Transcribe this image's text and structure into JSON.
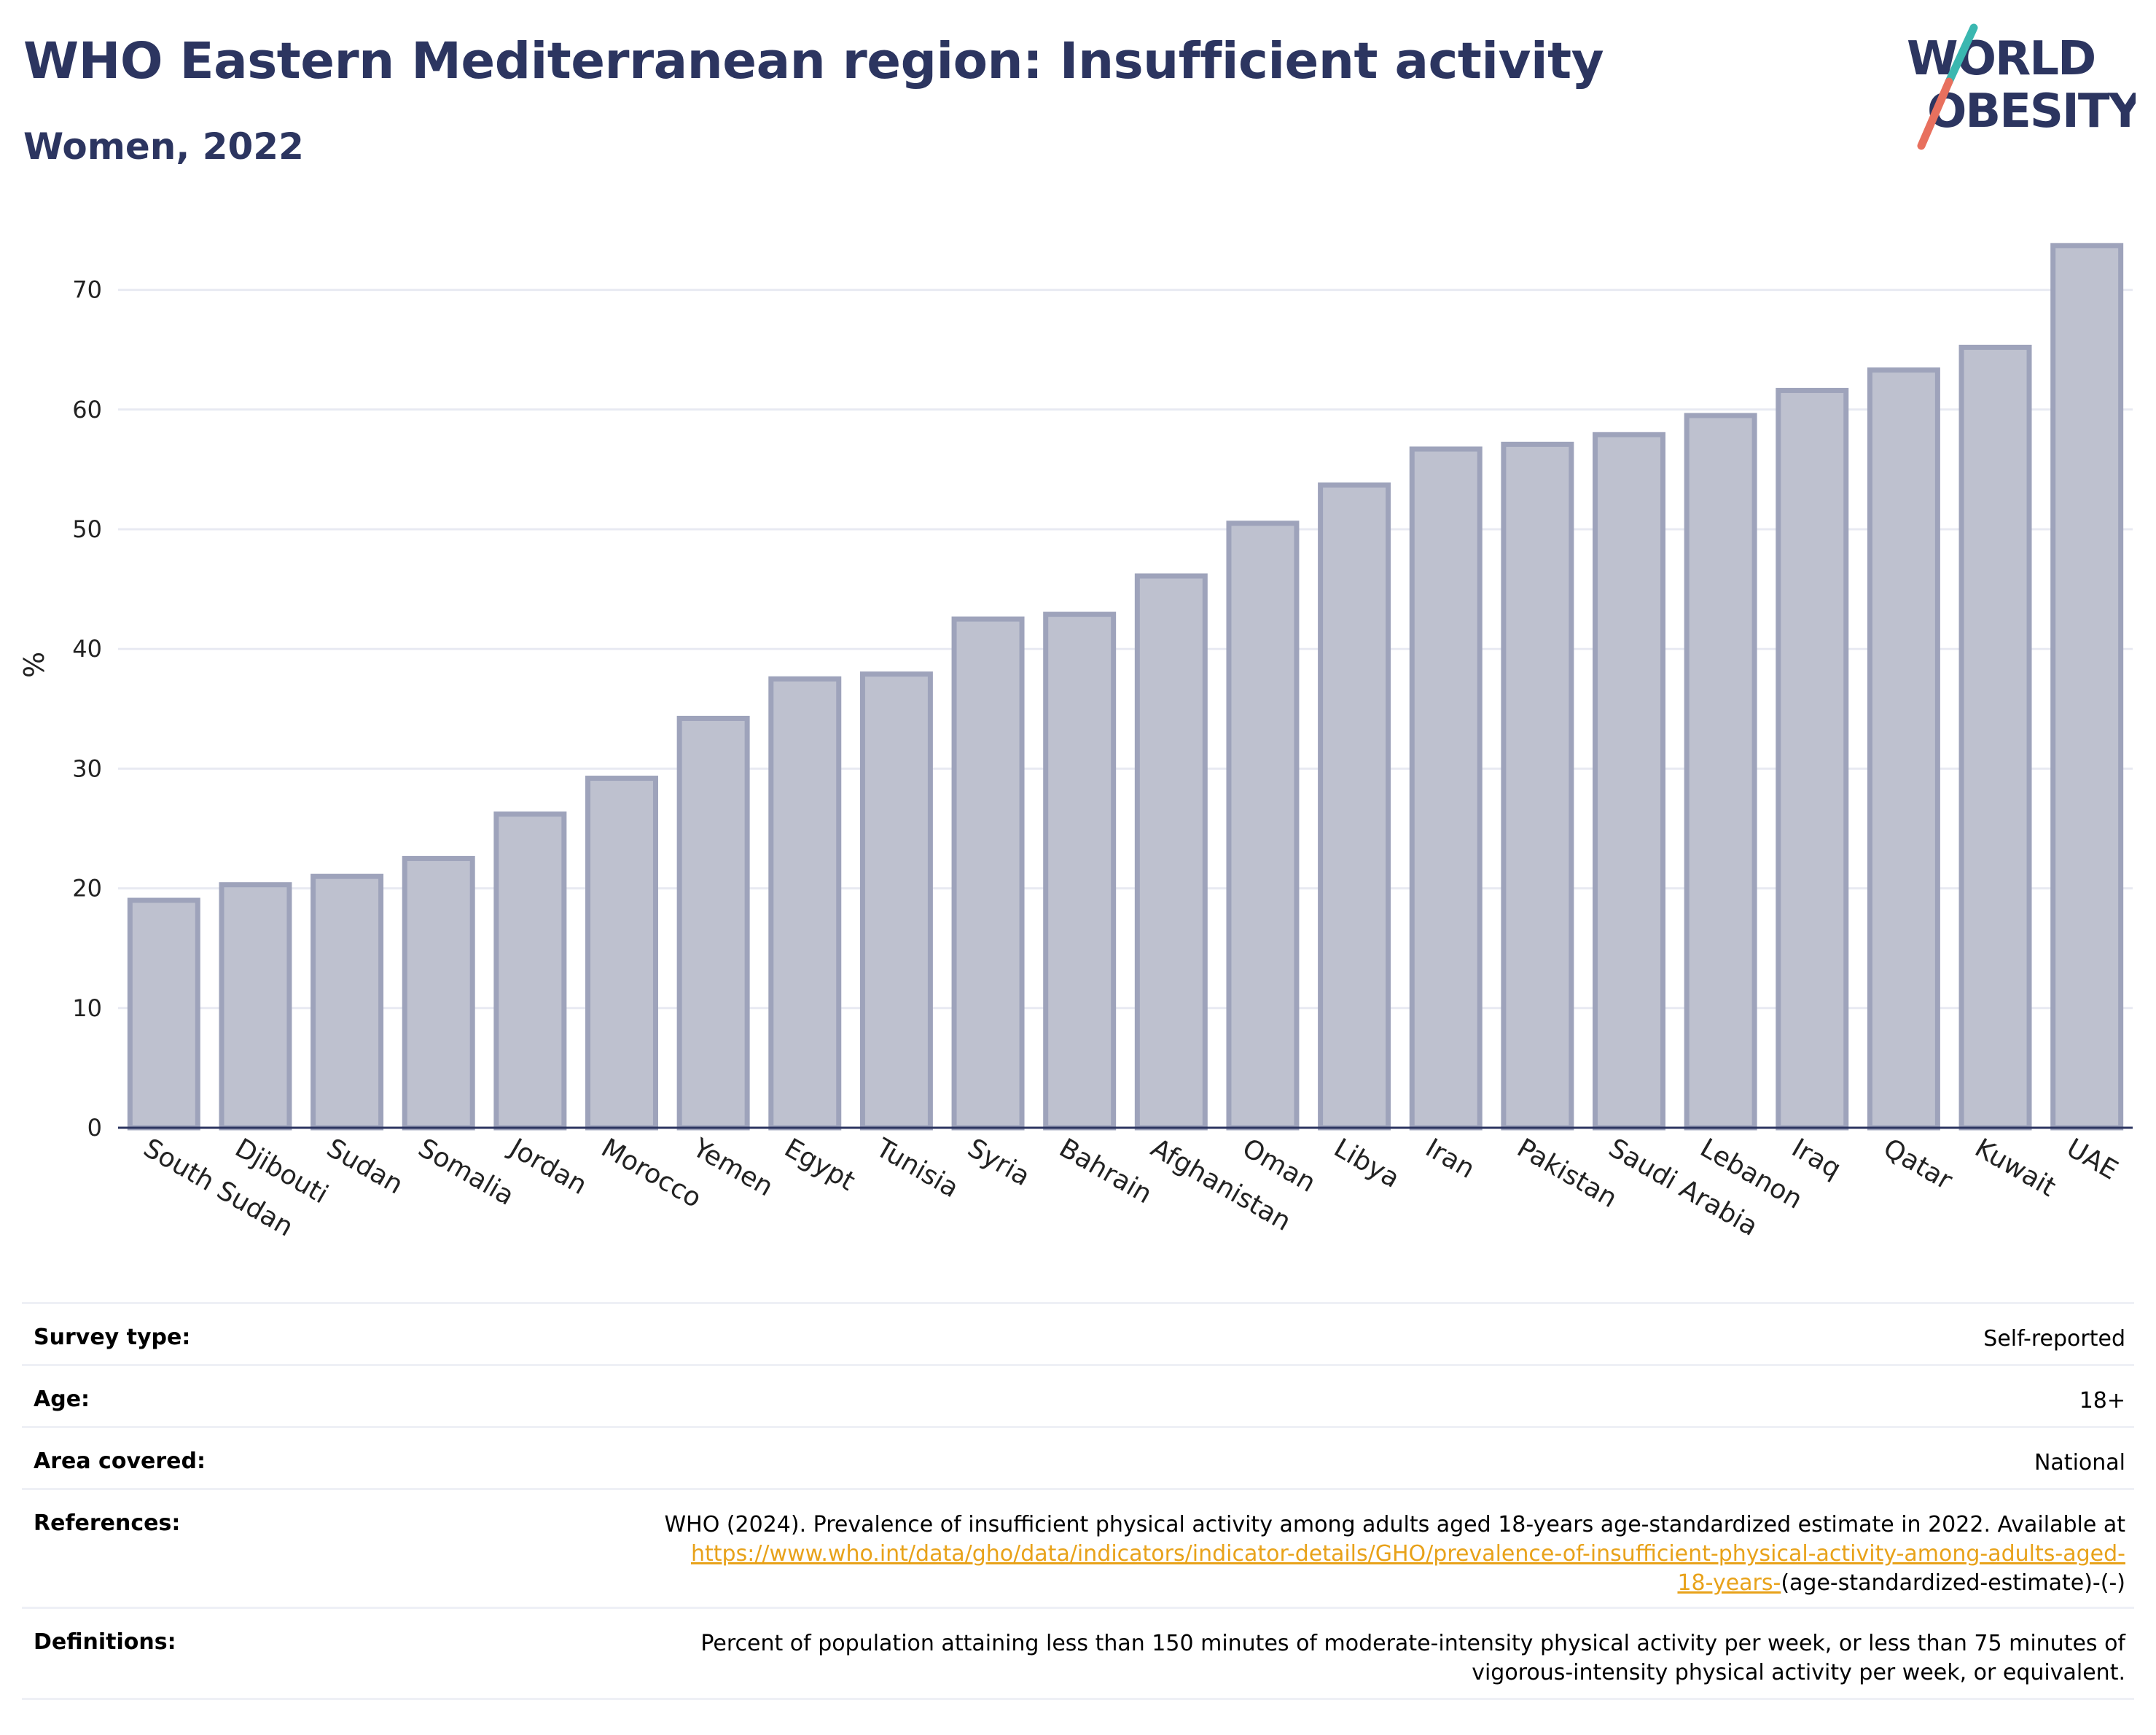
{
  "header": {
    "title": "WHO Eastern Mediterranean region: Insufficient activity",
    "subtitle": "Women, 2022"
  },
  "logo": {
    "line1": "WORLD",
    "line2": "OBESITY",
    "colors": {
      "text": "#2c3560",
      "slash_teal": "#3ab7b0",
      "slash_coral": "#e8705e"
    }
  },
  "chart_data": {
    "type": "bar",
    "title": "WHO Eastern Mediterranean region: Insufficient activity",
    "subtitle": "Women, 2022",
    "xlabel": "",
    "ylabel": "%",
    "ylim": [
      0,
      75
    ],
    "yticks": [
      0,
      10,
      20,
      30,
      40,
      50,
      60,
      70
    ],
    "grid": true,
    "categories": [
      "South Sudan",
      "Djibouti",
      "Sudan",
      "Somalia",
      "Jordan",
      "Morocco",
      "Yemen",
      "Egypt",
      "Tunisia",
      "Syria",
      "Bahrain",
      "Afghanistan",
      "Oman",
      "Libya",
      "Iran",
      "Pakistan",
      "Saudi Arabia",
      "Lebanon",
      "Iraq",
      "Qatar",
      "Kuwait",
      "UAE"
    ],
    "values": [
      19.0,
      20.3,
      21.0,
      22.5,
      26.2,
      29.2,
      34.2,
      37.5,
      37.9,
      42.5,
      42.9,
      46.1,
      50.5,
      53.7,
      56.7,
      57.1,
      57.9,
      59.5,
      61.6,
      63.3,
      65.2,
      73.7
    ],
    "colors": {
      "bar_fill": "#bec1cf",
      "bar_stroke": "#9ea3bb",
      "gridline": "#e8eaf2",
      "axis": "#2c3560"
    }
  },
  "meta": {
    "survey_type_label": "Survey type:",
    "survey_type_value": "Self-reported",
    "age_label": "Age:",
    "age_value": "18+",
    "area_label": "Area covered:",
    "area_value": "National",
    "references_label": "References:",
    "references_text": "WHO (2024). Prevalence of insufficient physical activity among adults aged 18-years age-standardized estimate in 2022. Available at",
    "references_link_line1": "https://www.who.int/data/gho/data/indicators/indicator-details/GHO/prevalence-of-insufficient-physical-activity-among-adults-aged-",
    "references_link_line2": "18-years-",
    "references_suffix": "(age-standardized-estimate)-(-)",
    "definitions_label": "Definitions:",
    "definitions_line1": "Percent of population attaining less than 150 minutes of moderate-intensity physical activity per week, or less than 75 minutes of",
    "definitions_line2": "vigorous-intensity physical activity per week, or equivalent.",
    "link_color": "#e8a21a"
  }
}
